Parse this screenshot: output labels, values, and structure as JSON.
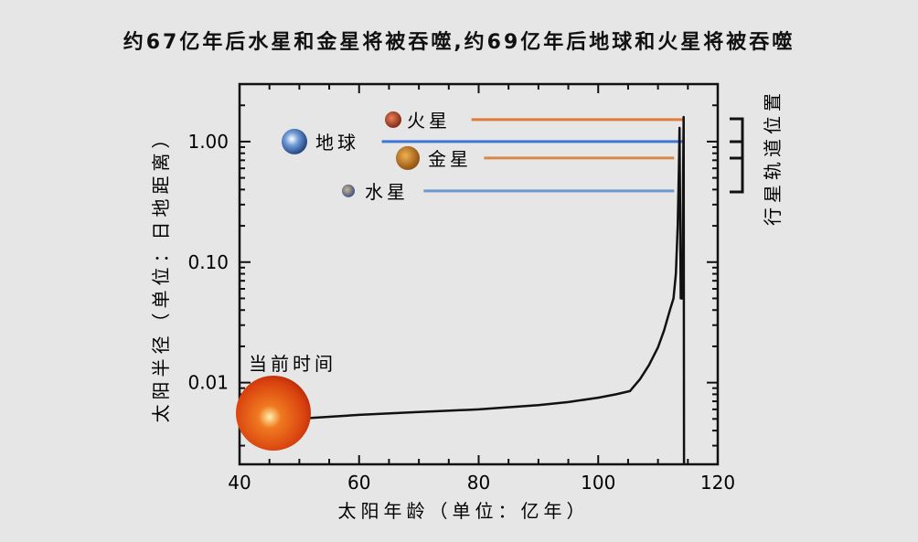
{
  "chart_data": {
    "type": "line",
    "title": "约67亿年后水星和金星将被吞噬,约69亿年后地球和火星将被吞噬",
    "xlabel": "太阳年龄（单位：亿年）",
    "ylabel": "太阳半径（单位：日地距离）",
    "right_label": "行星轨道位置",
    "xlim": [
      40,
      120
    ],
    "ylim": [
      0.0021,
      3.0
    ],
    "yscale": "log",
    "x_ticks": [
      40,
      60,
      80,
      100,
      120
    ],
    "x_tick_labels": [
      "40",
      "60",
      "80",
      "100",
      "120"
    ],
    "y_ticks": [
      1.0,
      0.1,
      0.01
    ],
    "y_tick_labels": [
      "1.00",
      "0.10",
      "0.01"
    ],
    "series": [
      {
        "name": "太阳半径",
        "color": "#111111",
        "x": [
          46,
          52,
          60,
          70,
          80,
          90,
          95,
          100,
          103,
          105.3,
          107,
          108.5,
          110,
          111,
          112,
          112.6,
          113,
          113.3,
          113.5,
          113.6,
          113.7,
          113.8,
          114.0,
          114.1,
          114.2,
          114.3,
          114.35
        ],
        "y": [
          0.0047,
          0.0051,
          0.0054,
          0.0057,
          0.006,
          0.0065,
          0.0069,
          0.0075,
          0.008,
          0.0085,
          0.0107,
          0.014,
          0.0196,
          0.027,
          0.04,
          0.05,
          0.08,
          0.2,
          0.6,
          1.3,
          0.3,
          0.05,
          0.05,
          0.05,
          0.5,
          1.6,
          0.0021
        ]
      }
    ],
    "planets": [
      {
        "name": "火星",
        "orbit_au": 1.52,
        "color": "#e07b39",
        "line_start": 78.8,
        "line_end": 114.2,
        "body_color": "#b8452a"
      },
      {
        "name": "地球",
        "orbit_au": 1.0,
        "color": "#3f74d8",
        "line_start": 63.8,
        "line_end": 114.2,
        "body_color": "#3a6db5"
      },
      {
        "name": "金星",
        "orbit_au": 0.73,
        "color": "#d8884a",
        "line_start": 80.9,
        "line_end": 112.7,
        "body_color": "#c07a1c"
      },
      {
        "name": "水星",
        "orbit_au": 0.39,
        "color": "#6d97cf",
        "line_start": 70.8,
        "line_end": 112.7,
        "body_color": "#6b6f8a"
      }
    ],
    "annotations": [
      {
        "text": "当前时间",
        "x": 45.7,
        "y": 0.0046
      }
    ]
  }
}
